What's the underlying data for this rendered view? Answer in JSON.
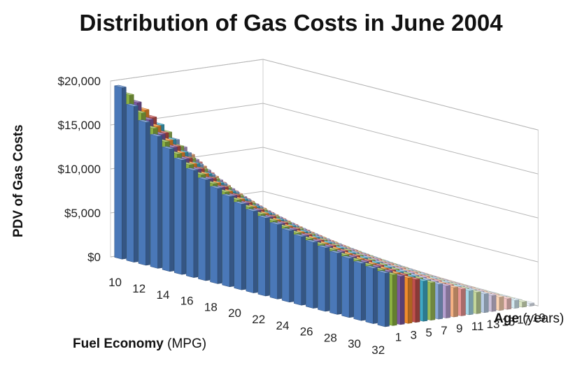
{
  "chart_data": {
    "type": "bar",
    "subtype": "3d-column",
    "title": "Distribution of Gas Costs in June 2004",
    "ylabel": "PDV of Gas Costs",
    "xlabel": {
      "bold": "Fuel Economy",
      "rest": " (MPG)"
    },
    "zlabel": {
      "bold": "Age",
      "rest": " (years)"
    },
    "ylim": [
      0,
      20000
    ],
    "y_ticks": [
      "$0",
      "$5,000",
      "$10,000",
      "$15,000",
      "$20,000"
    ],
    "y_tick_values": [
      0,
      5000,
      10000,
      15000,
      20000
    ],
    "x_categories": [
      10,
      11,
      12,
      13,
      14,
      15,
      16,
      17,
      18,
      19,
      20,
      21,
      22,
      23,
      24,
      25,
      26,
      27,
      28,
      29,
      30,
      31,
      32
    ],
    "x_tick_labels": [
      "10",
      "12",
      "14",
      "16",
      "18",
      "20",
      "22",
      "24",
      "26",
      "28",
      "30",
      "32"
    ],
    "age_categories": [
      1,
      2,
      3,
      4,
      5,
      6,
      7,
      8,
      9,
      10,
      11,
      12,
      13,
      14,
      15,
      16,
      17,
      18,
      19,
      20
    ],
    "age_tick_labels": [
      "1",
      "3",
      "5",
      "7",
      "9",
      "11",
      "13",
      "15",
      "17",
      "19"
    ],
    "series_colors": [
      "#4a78b8",
      "#8bb042",
      "#7b58a0",
      "#f08c2c",
      "#c0504d",
      "#3ea9c6",
      "#9bbb59",
      "#8aa8d8",
      "#b59fd0",
      "#f4b183",
      "#e99593",
      "#a6d7e8",
      "#c3d69b",
      "#b9cde5",
      "#ccc1da",
      "#fbd4b4",
      "#f2c4c3",
      "#d4eaf2",
      "#dae6c3",
      "#e6eef8"
    ],
    "value_rule": "PDV(mpg, age) = 195000 / mpg * (1 - (age - 1) / 20)",
    "max_value": 19500,
    "grid": true
  }
}
